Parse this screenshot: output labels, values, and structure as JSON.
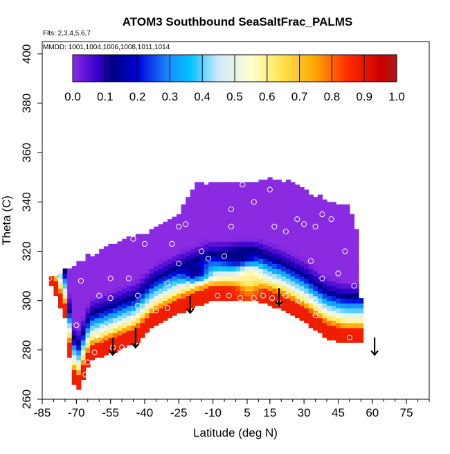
{
  "chart_data": {
    "type": "heatmap",
    "title": "ATOM3 Southbound SeaSaltFrac_PALMS",
    "subtitle_flights": "Flts: 2,3,4,5,6,7",
    "subtitle_dates": "MMDD: 1001,1004,1006,1008,1011,1014",
    "xlabel": "Latitude (deg N)",
    "ylabel": "Theta (C)",
    "xlim": [
      -85,
      85
    ],
    "ylim": [
      260,
      405
    ],
    "x_ticks": [
      -85,
      -70,
      -55,
      -40,
      -25,
      -10,
      5,
      15,
      30,
      45,
      60,
      75
    ],
    "x_ticks_labeled": [
      -85,
      -70,
      -55,
      -40,
      -25,
      -10,
      5,
      15,
      30,
      45,
      60,
      75
    ],
    "y_ticks": [
      260,
      280,
      300,
      320,
      340,
      360,
      380,
      400
    ],
    "grid": false,
    "colorbar": {
      "range": [
        0.0,
        1.0
      ],
      "tick_values": [
        0.0,
        0.1,
        0.2,
        0.3,
        0.4,
        0.5,
        0.6,
        0.7,
        0.8,
        0.9,
        1.0
      ],
      "tick_labels": [
        "0.0",
        "0.1",
        "0.2",
        "0.3",
        "0.4",
        "0.5",
        "0.6",
        "0.7",
        "0.8",
        "0.9",
        "1.0"
      ],
      "stops": [
        {
          "v": 0.0,
          "color": "#8a2be2"
        },
        {
          "v": 0.08,
          "color": "#3300cc"
        },
        {
          "v": 0.12,
          "color": "#000080"
        },
        {
          "v": 0.2,
          "color": "#0000d8"
        },
        {
          "v": 0.3,
          "color": "#1e90ff"
        },
        {
          "v": 0.36,
          "color": "#00bfff"
        },
        {
          "v": 0.45,
          "color": "#cfe9ff"
        },
        {
          "v": 0.55,
          "color": "#ffffd0"
        },
        {
          "v": 0.65,
          "color": "#ffe24a"
        },
        {
          "v": 0.75,
          "color": "#ffa500"
        },
        {
          "v": 0.85,
          "color": "#ff2a00"
        },
        {
          "v": 0.95,
          "color": "#cc0000"
        },
        {
          "v": 1.0,
          "color": "#a81c1c"
        }
      ]
    },
    "field_envelope": {
      "top": [
        [
          -82,
          310
        ],
        [
          -75,
          312
        ],
        [
          -65,
          318
        ],
        [
          -55,
          322
        ],
        [
          -45,
          326
        ],
        [
          -35,
          329
        ],
        [
          -25,
          335
        ],
        [
          -17,
          347
        ],
        [
          -5,
          348
        ],
        [
          5,
          348
        ],
        [
          15,
          349
        ],
        [
          25,
          348
        ],
        [
          32,
          344
        ],
        [
          42,
          340
        ],
        [
          50,
          338
        ],
        [
          54,
          327
        ],
        [
          55,
          300
        ]
      ],
      "bottom": [
        [
          -82,
          309
        ],
        [
          -75,
          293
        ],
        [
          -72,
          270
        ],
        [
          -70,
          262
        ],
        [
          -68,
          266
        ],
        [
          -64,
          276
        ],
        [
          -58,
          278
        ],
        [
          -50,
          281
        ],
        [
          -44,
          283
        ],
        [
          -36,
          290
        ],
        [
          -25,
          295
        ],
        [
          -12,
          300
        ],
        [
          0,
          300
        ],
        [
          10,
          300
        ],
        [
          20,
          297
        ],
        [
          30,
          292
        ],
        [
          40,
          285
        ],
        [
          48,
          283
        ],
        [
          55,
          283
        ]
      ]
    },
    "features": [
      {
        "kind": "surface_layer",
        "depth": 9,
        "value": 0.88
      },
      {
        "kind": "blob",
        "x": 6,
        "y": 310,
        "sx": 5,
        "sy": 7,
        "value": 0.6
      },
      {
        "kind": "blob",
        "x": 2,
        "y": 318,
        "sx": 8,
        "sy": 4,
        "value": 0.12
      },
      {
        "kind": "blob",
        "x": -18,
        "y": 312,
        "sx": 6,
        "sy": 4,
        "value": 0.12
      }
    ],
    "sample_points": [
      [
        -82,
        309
      ],
      [
        -78,
        310
      ],
      [
        -72,
        315
      ],
      [
        -68,
        308
      ],
      [
        -60,
        302
      ],
      [
        -58,
        289
      ],
      [
        -55,
        301
      ],
      [
        -55,
        309
      ],
      [
        -60,
        285
      ],
      [
        -54,
        281
      ],
      [
        -48,
        278
      ],
      [
        -58,
        275
      ],
      [
        -43,
        302
      ],
      [
        -43,
        298
      ],
      [
        -47,
        309
      ],
      [
        -45,
        325
      ],
      [
        -40,
        323
      ],
      [
        -35,
        296
      ],
      [
        -30,
        307
      ],
      [
        -28,
        323
      ],
      [
        -25,
        330
      ],
      [
        -22,
        331
      ],
      [
        -25,
        315
      ],
      [
        -15,
        320
      ],
      [
        -12,
        317
      ],
      [
        -5,
        318
      ],
      [
        -8,
        302
      ],
      [
        -2,
        330
      ],
      [
        -2,
        337
      ],
      [
        3,
        347
      ],
      [
        8,
        340
      ],
      [
        15,
        345
      ],
      [
        17,
        330
      ],
      [
        22,
        328
      ],
      [
        27,
        333
      ],
      [
        30,
        331
      ],
      [
        35,
        330
      ],
      [
        38,
        335
      ],
      [
        33,
        316
      ],
      [
        38,
        309
      ],
      [
        35,
        300
      ],
      [
        45,
        311
      ],
      [
        42,
        333
      ],
      [
        48,
        320
      ],
      [
        52,
        306
      ],
      [
        50,
        285
      ],
      [
        46,
        281
      ],
      [
        35,
        294
      ],
      [
        12,
        302
      ],
      [
        16,
        301
      ],
      [
        19,
        299
      ],
      [
        8,
        301
      ],
      [
        2,
        301
      ],
      [
        -3,
        302
      ],
      [
        -30,
        297
      ],
      [
        -50,
        281
      ],
      [
        -38,
        286
      ],
      [
        -65,
        275
      ],
      [
        -66,
        270
      ],
      [
        -62,
        279
      ],
      [
        -55,
        276
      ],
      [
        -70,
        290
      ],
      [
        28,
        300
      ],
      [
        22,
        302
      ]
    ],
    "arrows": [
      {
        "x": -54,
        "y_top": 285,
        "y_tip": 278
      },
      {
        "x": -44,
        "y_top": 289,
        "y_tip": 281
      },
      {
        "x": -20,
        "y_top": 302,
        "y_tip": 295
      },
      {
        "x": 19,
        "y_top": 305,
        "y_tip": 298
      },
      {
        "x": 61,
        "y_top": 285,
        "y_tip": 278
      }
    ]
  }
}
